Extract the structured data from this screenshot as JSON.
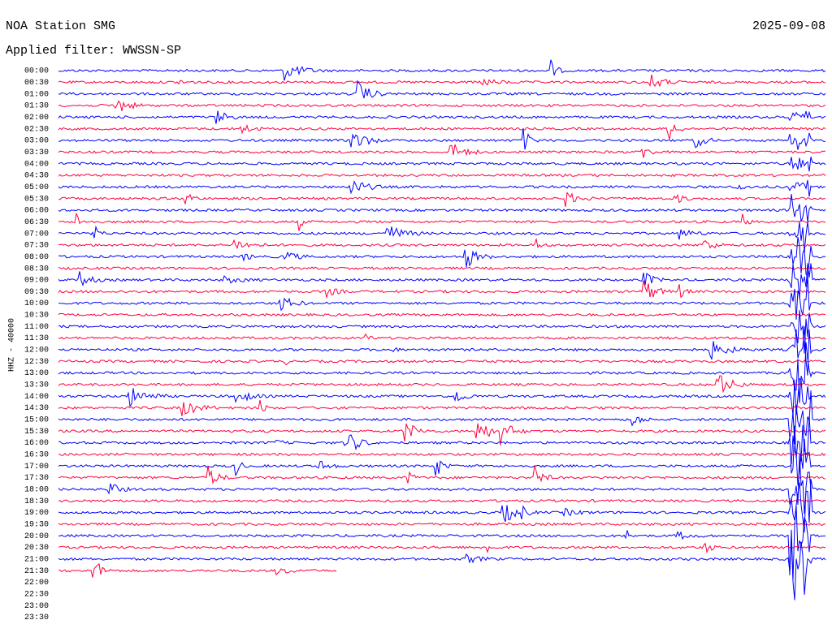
{
  "header": {
    "station": "NOA Station SMG",
    "filter": "Applied filter: WWSSN-SP",
    "date": "2025-09-08"
  },
  "axis_label": "HHZ - 40000",
  "time_labels": [
    "00:00",
    "00:30",
    "01:00",
    "01:30",
    "02:00",
    "02:30",
    "03:00",
    "03:30",
    "04:00",
    "04:30",
    "05:00",
    "05:30",
    "06:00",
    "06:30",
    "07:00",
    "07:30",
    "08:00",
    "08:30",
    "09:00",
    "09:30",
    "10:00",
    "10:30",
    "11:00",
    "11:30",
    "12:00",
    "12:30",
    "13:00",
    "13:30",
    "14:00",
    "14:30",
    "15:00",
    "15:30",
    "16:00",
    "16:30",
    "17:00",
    "17:30",
    "18:00",
    "18:30",
    "19:00",
    "19:30",
    "20:00",
    "20:30",
    "21:00",
    "21:30",
    "22:00",
    "22:30",
    "23:00",
    "23:30"
  ]
}
